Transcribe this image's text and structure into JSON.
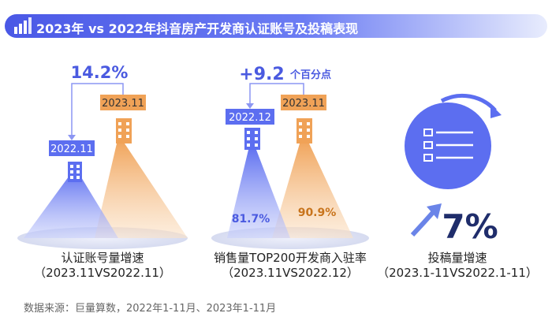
{
  "header": {
    "title": "2023年 vs 2022年抖音房产开发商认证账号及投稿表现"
  },
  "colors": {
    "blue": "#5c6ef0",
    "orange": "#f0a257",
    "dark": "#1f2d6b"
  },
  "chart_data": [
    {
      "type": "bar",
      "title": "认证账号量增速",
      "period": "（2023.11VS2022.11）",
      "categories": [
        "2022.11",
        "2023.11"
      ],
      "growth_label": "14.2%",
      "growth": 14.2
    },
    {
      "type": "bar",
      "title": "销售量TOP200开发商入驻率",
      "period": "（2023.11VS2022.12）",
      "categories": [
        "2022.12",
        "2023.11"
      ],
      "values": [
        81.7,
        90.9
      ],
      "value_labels": [
        "81.7%",
        "90.9%"
      ],
      "diff_label": "+9.2",
      "diff_unit": "个百分点"
    },
    {
      "type": "table",
      "title": "投稿量增速",
      "period": "（2023.1-11VS2022.1-11）",
      "growth_label": "7%",
      "growth": 7
    }
  ],
  "footer": {
    "source": "数据来源：巨量算数，2022年1-11月、2023年1-11月"
  }
}
